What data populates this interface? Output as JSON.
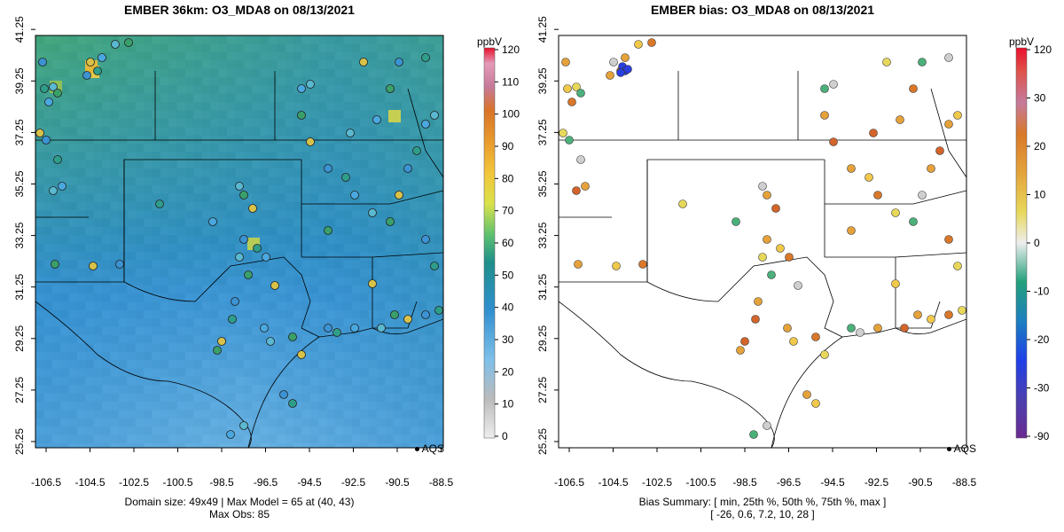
{
  "left_panel": {
    "title": "EMBER 36km: O3_MDA8 on 08/13/2021",
    "legend_label": "AQS",
    "caption_line1": "Domain size: 49x49 | Max Model = 65 at (40, 43)",
    "caption_line2": "Max Obs: 85",
    "colorbar_unit": "ppbV",
    "colorbar_ticks": [
      "0",
      "10",
      "20",
      "30",
      "40",
      "50",
      "60",
      "70",
      "80",
      "90",
      "100",
      "110",
      "120"
    ]
  },
  "right_panel": {
    "title": "EMBER bias: O3_MDA8 on 08/13/2021",
    "legend_label": "AQS",
    "caption_line1": "Bias Summary: [ min, 25th %, 50th %, 75th %, max ]",
    "caption_line2": "[ -26,  0.6,  7.2,  10,  28 ]",
    "colorbar_unit": "ppbV",
    "colorbar_ticks": [
      "-90",
      "-30",
      "-20",
      "-10",
      "0",
      "10",
      "20",
      "30",
      "120"
    ]
  },
  "axes": {
    "x_ticks": [
      "-106.5",
      "-104.5",
      "-102.5",
      "-100.5",
      "-98.5",
      "-96.5",
      "-94.5",
      "-92.5",
      "-90.5",
      "-88.5"
    ],
    "y_ticks": [
      "25.25",
      "27.25",
      "29.25",
      "31.25",
      "33.25",
      "35.25",
      "37.25",
      "39.25",
      "41.25"
    ]
  },
  "colors": {
    "model_low": "#7fc0ea",
    "model_mid": "#2f8fcf",
    "model_high": "#3aa083",
    "station_edge": "#222222",
    "boundary": "#000000"
  }
}
